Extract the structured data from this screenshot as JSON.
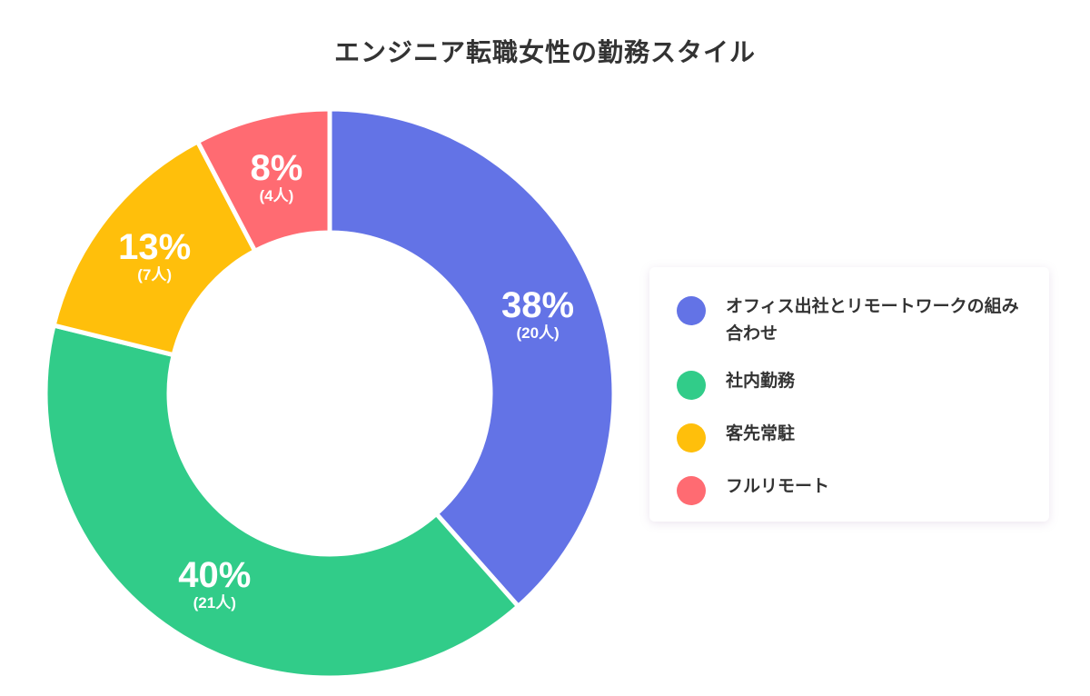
{
  "title": "エンジニア転職女性の勤務スタイル",
  "chart_data": {
    "type": "pie",
    "variant": "donut",
    "title": "エンジニア転職女性の勤務スタイル",
    "categories": [
      "オフィス出社とリモートワークの組み合わせ",
      "社内勤務",
      "客先常駐",
      "フルリモート"
    ],
    "values": [
      20,
      21,
      7,
      4
    ],
    "percentages": [
      38,
      40,
      13,
      8
    ],
    "colors": [
      "#6373E6",
      "#31CC89",
      "#FFBF0B",
      "#FF6B72"
    ],
    "legend_position": "right",
    "start_angle": "12 o'clock, clockwise"
  },
  "slices": [
    {
      "pct": "38%",
      "count": "(20人)"
    },
    {
      "pct": "40%",
      "count": "(21人)"
    },
    {
      "pct": "13%",
      "count": "(7人)"
    },
    {
      "pct": "8%",
      "count": "(4人)"
    }
  ],
  "legend": {
    "items": [
      {
        "label": "オフィス出社とリモートワークの組み合わせ",
        "color": "#6373E6"
      },
      {
        "label": "社内勤務",
        "color": "#31CC89"
      },
      {
        "label": "客先常駐",
        "color": "#FFBF0B"
      },
      {
        "label": "フルリモート",
        "color": "#FF6B72"
      }
    ]
  }
}
